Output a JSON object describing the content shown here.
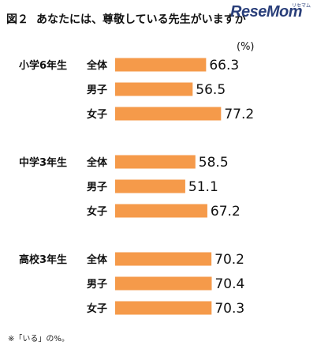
{
  "header": {
    "fig_label": "図２",
    "title": "あなたには、尊敬している先生がいますか"
  },
  "logo": {
    "text": "ReseMom",
    "kana": "リセマム"
  },
  "unit_label": "(%)",
  "footnote": "※「いる」の%。",
  "colors": {
    "bar": "#f59a4a"
  },
  "chart_data": {
    "type": "bar",
    "orientation": "horizontal",
    "title": "あなたには、尊敬している先生がいますか",
    "unit": "(%)",
    "groups": [
      {
        "name": "小学6年生",
        "rows": [
          {
            "label": "全体",
            "value": 66.3
          },
          {
            "label": "男子",
            "value": 56.5
          },
          {
            "label": "女子",
            "value": 77.2
          }
        ]
      },
      {
        "name": "中学3年生",
        "rows": [
          {
            "label": "全体",
            "value": 58.5
          },
          {
            "label": "男子",
            "value": 51.1
          },
          {
            "label": "女子",
            "value": 67.2
          }
        ]
      },
      {
        "name": "高校3年生",
        "rows": [
          {
            "label": "全体",
            "value": 70.2
          },
          {
            "label": "男子",
            "value": 70.4
          },
          {
            "label": "女子",
            "value": 70.3
          }
        ]
      }
    ],
    "grid": false,
    "legend": "none"
  }
}
